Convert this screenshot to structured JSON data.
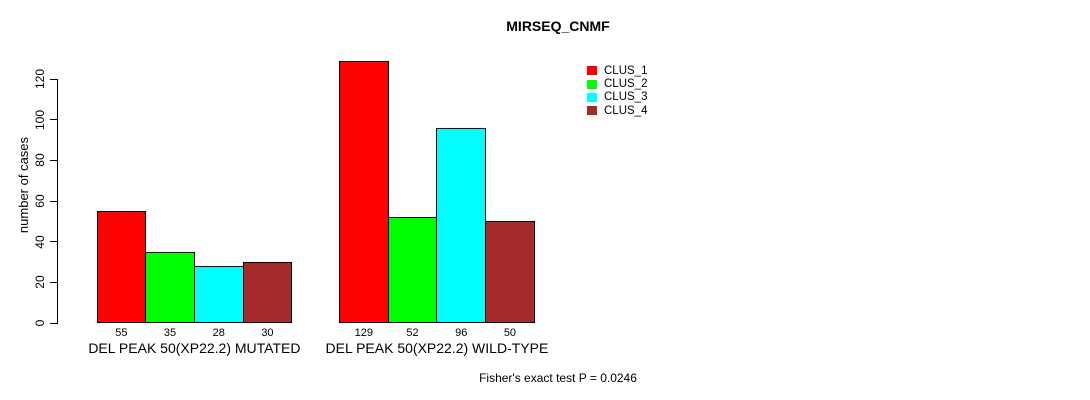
{
  "chart_data": {
    "type": "bar",
    "title": "MIRSEQ_CNMF",
    "ylabel": "number of cases",
    "annotation": "Fisher's exact test P = 0.0246",
    "yticks": [
      0,
      20,
      40,
      60,
      80,
      100,
      120
    ],
    "ylim": [
      0,
      125
    ],
    "grid": false,
    "legend_position": "top-right",
    "categories": [
      "DEL PEAK 50(XP22.2) MUTATED",
      "DEL PEAK 50(XP22.2) WILD-TYPE"
    ],
    "series": [
      {
        "name": "CLUS_1",
        "color": "#FF0000",
        "values": [
          55,
          129
        ]
      },
      {
        "name": "CLUS_2",
        "color": "#00FF00",
        "values": [
          35,
          52
        ]
      },
      {
        "name": "CLUS_3",
        "color": "#00FFFF",
        "values": [
          28,
          96
        ]
      },
      {
        "name": "CLUS_4",
        "color": "#A52A2A",
        "values": [
          30,
          50
        ]
      }
    ],
    "bar_value_labels": [
      [
        "55",
        "35",
        "28",
        "30"
      ],
      [
        "129",
        "52",
        "96",
        "50"
      ]
    ]
  }
}
